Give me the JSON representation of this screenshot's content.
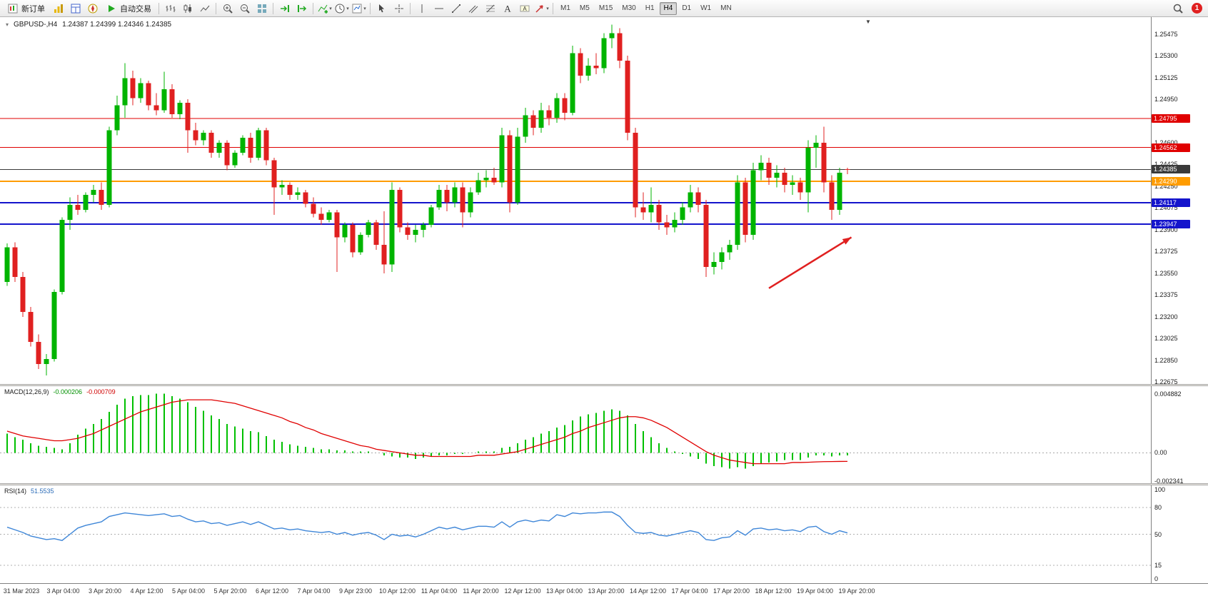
{
  "toolbar": {
    "items": [
      {
        "name": "new-order",
        "icon": "new-order-icon",
        "label": "新订单"
      },
      {
        "name": "market-watch",
        "icon": "market-watch-icon"
      },
      {
        "name": "data-window",
        "icon": "data-window-icon"
      },
      {
        "name": "navigator",
        "icon": "navigator-icon"
      },
      {
        "name": "autotrading",
        "icon": "autotrading-icon",
        "label": "自动交易"
      },
      {
        "sep": true
      },
      {
        "name": "bar-chart",
        "icon": "bar-chart-icon"
      },
      {
        "name": "candlestick-chart",
        "icon": "candlestick-icon"
      },
      {
        "name": "line-chart",
        "icon": "line-chart-icon"
      },
      {
        "sep": true
      },
      {
        "name": "zoom-in",
        "icon": "zoom-in-icon"
      },
      {
        "name": "zoom-out",
        "icon": "zoom-out-icon"
      },
      {
        "name": "tile-windows",
        "icon": "tile-windows-icon"
      },
      {
        "sep": true
      },
      {
        "name": "auto-scroll",
        "icon": "auto-scroll-icon"
      },
      {
        "name": "chart-shift",
        "icon": "chart-shift-icon"
      },
      {
        "sep": true
      },
      {
        "name": "indicators",
        "icon": "indicators-icon",
        "caret": true
      },
      {
        "name": "periods",
        "icon": "periods-icon",
        "caret": true
      },
      {
        "name": "templates",
        "icon": "templates-icon",
        "caret": true
      },
      {
        "sep": true
      },
      {
        "name": "cursor",
        "icon": "cursor-icon"
      },
      {
        "name": "crosshair",
        "icon": "crosshair-icon"
      },
      {
        "sep": true
      },
      {
        "name": "vertical-line",
        "icon": "vertical-line-icon"
      },
      {
        "name": "horizontal-line",
        "icon": "horizontal-line-icon"
      },
      {
        "name": "trendline",
        "icon": "trendline-icon"
      },
      {
        "name": "equidistant-channel",
        "icon": "channel-icon"
      },
      {
        "name": "fibonacci",
        "icon": "fibonacci-icon"
      },
      {
        "name": "text",
        "icon": "text-icon"
      },
      {
        "name": "text-label",
        "icon": "text-label-icon"
      },
      {
        "name": "arrow-objects",
        "icon": "arrow-objects-icon",
        "caret": true
      },
      {
        "sep": true
      }
    ],
    "timeframes": [
      "M1",
      "M5",
      "M15",
      "M30",
      "H1",
      "H4",
      "D1",
      "W1",
      "MN"
    ],
    "active_timeframe": "H4",
    "notification_count": "1"
  },
  "chart": {
    "symbol_period": "GBPUSD-,H4",
    "ohlc": "1.24387 1.24399 1.24346 1.24385"
  },
  "chart_data": {
    "type": "candlestick",
    "symbol": "GBPUSD-",
    "timeframe": "H4",
    "colors": {
      "up": "#00b400",
      "down": "#e02020",
      "macd_histogram": "#00c000",
      "macd_signal": "#e00000",
      "rsi_line": "#3e86d8"
    },
    "view_main": {
      "high": 1.2561,
      "low": 1.2266
    },
    "price_axis_labels": [
      "1.25475",
      "1.25300",
      "1.25125",
      "1.24950",
      "1.24775",
      "1.24600",
      "1.24425",
      "1.24250",
      "1.24075",
      "1.23900",
      "1.23725",
      "1.23550",
      "1.23375",
      "1.23200",
      "1.23025",
      "1.22850",
      "1.22675"
    ],
    "hlines": [
      {
        "price": 1.24795,
        "color": "#e00000",
        "label": "1.24795",
        "width": 1
      },
      {
        "price": 1.24562,
        "color": "#e00000",
        "label": "1.24562",
        "width": 1
      },
      {
        "price": 1.2429,
        "color": "#ff9c00",
        "label": "1.24290",
        "width": 2
      },
      {
        "price": 1.24117,
        "color": "#1414cc",
        "label": "1.24117",
        "width": 2
      },
      {
        "price": 1.23947,
        "color": "#1414cc",
        "label": "1.23947",
        "width": 2
      },
      {
        "price": 1.24385,
        "color": "#3a3a3a",
        "label": "1.24385",
        "width": 1,
        "current": true
      }
    ],
    "arrow": {
      "from_index": 97,
      "from_price": 1.2343,
      "to_index": 107.5,
      "to_price": 1.2384,
      "color": "#e02020"
    },
    "candles": [
      [
        1.2348,
        1.2379,
        1.2345,
        1.2376
      ],
      [
        1.2376,
        1.238,
        1.2348,
        1.2352
      ],
      [
        1.2352,
        1.2356,
        1.232,
        1.2324
      ],
      [
        1.2324,
        1.2328,
        1.2296,
        1.23
      ],
      [
        1.23,
        1.2306,
        1.2278,
        1.2282
      ],
      [
        1.2282,
        1.229,
        1.2273,
        1.2286
      ],
      [
        1.2286,
        1.2342,
        1.2284,
        1.234
      ],
      [
        1.234,
        1.24,
        1.2338,
        1.2398
      ],
      [
        1.2398,
        1.2416,
        1.239,
        1.241
      ],
      [
        1.241,
        1.2418,
        1.2402,
        1.2406
      ],
      [
        1.2406,
        1.242,
        1.2404,
        1.2418
      ],
      [
        1.2418,
        1.2426,
        1.2412,
        1.2422
      ],
      [
        1.2422,
        1.2428,
        1.2406,
        1.241
      ],
      [
        1.241,
        1.2473,
        1.2408,
        1.247
      ],
      [
        1.247,
        1.2498,
        1.2466,
        1.249
      ],
      [
        1.249,
        1.2524,
        1.248,
        1.2512
      ],
      [
        1.2512,
        1.2518,
        1.249,
        1.2496
      ],
      [
        1.2496,
        1.2512,
        1.2492,
        1.2508
      ],
      [
        1.2508,
        1.251,
        1.2486,
        1.249
      ],
      [
        1.249,
        1.25,
        1.2482,
        1.2486
      ],
      [
        1.2486,
        1.2517,
        1.2484,
        1.2503
      ],
      [
        1.2503,
        1.2507,
        1.248,
        1.2483
      ],
      [
        1.2483,
        1.2494,
        1.2479,
        1.2492
      ],
      [
        1.2492,
        1.2495,
        1.2452,
        1.247
      ],
      [
        1.247,
        1.2476,
        1.2458,
        1.2462
      ],
      [
        1.2462,
        1.247,
        1.2458,
        1.2468
      ],
      [
        1.2468,
        1.247,
        1.2448,
        1.2452
      ],
      [
        1.2452,
        1.2462,
        1.2448,
        1.246
      ],
      [
        1.246,
        1.2462,
        1.2438,
        1.2442
      ],
      [
        1.2442,
        1.2454,
        1.244,
        1.2452
      ],
      [
        1.2452,
        1.2466,
        1.245,
        1.2464
      ],
      [
        1.2464,
        1.2468,
        1.2444,
        1.2448
      ],
      [
        1.2448,
        1.2472,
        1.2446,
        1.247
      ],
      [
        1.247,
        1.2472,
        1.2442,
        1.2446
      ],
      [
        1.2446,
        1.2448,
        1.2402,
        1.2424
      ],
      [
        1.2424,
        1.243,
        1.2418,
        1.2426
      ],
      [
        1.2426,
        1.2428,
        1.2414,
        1.2418
      ],
      [
        1.2418,
        1.2424,
        1.2414,
        1.242
      ],
      [
        1.242,
        1.2422,
        1.2408,
        1.2411
      ],
      [
        1.2411,
        1.2416,
        1.24,
        1.2403
      ],
      [
        1.2403,
        1.2408,
        1.2394,
        1.2398
      ],
      [
        1.2398,
        1.2406,
        1.2396,
        1.2404
      ],
      [
        1.2404,
        1.2406,
        1.2356,
        1.2384
      ],
      [
        1.2384,
        1.2396,
        1.238,
        1.2394
      ],
      [
        1.2394,
        1.2396,
        1.2368,
        1.2372
      ],
      [
        1.2372,
        1.2388,
        1.237,
        1.2386
      ],
      [
        1.2386,
        1.2398,
        1.2384,
        1.2396
      ],
      [
        1.2396,
        1.2398,
        1.2374,
        1.2378
      ],
      [
        1.2378,
        1.2405,
        1.2355,
        1.2362
      ],
      [
        1.2362,
        1.2428,
        1.2356,
        1.2422
      ],
      [
        1.2422,
        1.2424,
        1.2388,
        1.2392
      ],
      [
        1.2392,
        1.2396,
        1.2382,
        1.2386
      ],
      [
        1.2386,
        1.2394,
        1.238,
        1.239
      ],
      [
        1.239,
        1.2396,
        1.2384,
        1.2394
      ],
      [
        1.2394,
        1.241,
        1.2392,
        1.2408
      ],
      [
        1.2408,
        1.2426,
        1.2406,
        1.2422
      ],
      [
        1.2422,
        1.2426,
        1.2405,
        1.2412
      ],
      [
        1.2412,
        1.2428,
        1.2408,
        1.2424
      ],
      [
        1.2424,
        1.2428,
        1.2392,
        1.2404
      ],
      [
        1.2404,
        1.2424,
        1.24,
        1.242
      ],
      [
        1.242,
        1.2436,
        1.2418,
        1.243
      ],
      [
        1.243,
        1.2438,
        1.2424,
        1.2432
      ],
      [
        1.2432,
        1.244,
        1.2426,
        1.2428
      ],
      [
        1.2428,
        1.2472,
        1.2424,
        1.2466
      ],
      [
        1.2466,
        1.247,
        1.2404,
        1.2412
      ],
      [
        1.2412,
        1.2472,
        1.241,
        1.2465
      ],
      [
        1.2465,
        1.2488,
        1.246,
        1.2482
      ],
      [
        1.2482,
        1.2486,
        1.2466,
        1.2472
      ],
      [
        1.2472,
        1.2492,
        1.2468,
        1.2486
      ],
      [
        1.2486,
        1.249,
        1.2474,
        1.248
      ],
      [
        1.248,
        1.25,
        1.2476,
        1.2496
      ],
      [
        1.2496,
        1.25,
        1.2478,
        1.2484
      ],
      [
        1.2484,
        1.2538,
        1.2482,
        1.2532
      ],
      [
        1.2532,
        1.2536,
        1.2508,
        1.2514
      ],
      [
        1.2514,
        1.2528,
        1.251,
        1.2522
      ],
      [
        1.2522,
        1.2532,
        1.2515,
        1.252
      ],
      [
        1.252,
        1.2548,
        1.2516,
        1.2544
      ],
      [
        1.2544,
        1.2555,
        1.2536,
        1.2548
      ],
      [
        1.2548,
        1.2552,
        1.252,
        1.2526
      ],
      [
        1.2526,
        1.253,
        1.2462,
        1.2468
      ],
      [
        1.2468,
        1.2472,
        1.24,
        1.2408
      ],
      [
        1.2408,
        1.242,
        1.2398,
        1.2404
      ],
      [
        1.2404,
        1.2424,
        1.2396,
        1.241
      ],
      [
        1.241,
        1.2414,
        1.239,
        1.2396
      ],
      [
        1.2396,
        1.2402,
        1.2386,
        1.2392
      ],
      [
        1.2392,
        1.2404,
        1.2388,
        1.2398
      ],
      [
        1.2398,
        1.2412,
        1.2394,
        1.2408
      ],
      [
        1.2408,
        1.2426,
        1.2404,
        1.242
      ],
      [
        1.242,
        1.2424,
        1.2404,
        1.241
      ],
      [
        1.241,
        1.2414,
        1.2352,
        1.236
      ],
      [
        1.236,
        1.2372,
        1.2354,
        1.2364
      ],
      [
        1.2364,
        1.2376,
        1.2358,
        1.2372
      ],
      [
        1.2372,
        1.2382,
        1.2366,
        1.2378
      ],
      [
        1.2378,
        1.2434,
        1.2374,
        1.2428
      ],
      [
        1.2428,
        1.2432,
        1.238,
        1.2386
      ],
      [
        1.2386,
        1.2444,
        1.2382,
        1.2438
      ],
      [
        1.2438,
        1.245,
        1.243,
        1.2444
      ],
      [
        1.2444,
        1.2448,
        1.2426,
        1.2432
      ],
      [
        1.2432,
        1.2442,
        1.2424,
        1.2436
      ],
      [
        1.2436,
        1.244,
        1.242,
        1.2426
      ],
      [
        1.2426,
        1.2434,
        1.2418,
        1.2428
      ],
      [
        1.2428,
        1.2432,
        1.2414,
        1.242
      ],
      [
        1.242,
        1.2462,
        1.2404,
        1.2456
      ],
      [
        1.2456,
        1.2466,
        1.244,
        1.246
      ],
      [
        1.246,
        1.2473,
        1.242,
        1.2428
      ],
      [
        1.2428,
        1.2434,
        1.2398,
        1.2406
      ],
      [
        1.2406,
        1.244,
        1.2402,
        1.2436
      ],
      [
        1.24387,
        1.24399,
        1.24346,
        1.24385
      ]
    ],
    "time_labels": [
      "31 Mar 2023",
      "3 Apr 04:00",
      "3 Apr 20:00",
      "4 Apr 12:00",
      "5 Apr 04:00",
      "5 Apr 20:00",
      "6 Apr 12:00",
      "7 Apr 04:00",
      "9 Apr 23:00",
      "10 Apr 12:00",
      "11 Apr 04:00",
      "11 Apr 20:00",
      "12 Apr 12:00",
      "13 Apr 04:00",
      "13 Apr 20:00",
      "14 Apr 12:00",
      "17 Apr 04:00",
      "17 Apr 20:00",
      "18 Apr 12:00",
      "19 Apr 04:00",
      "19 Apr 20:00"
    ],
    "macd": {
      "label": "MACD(12,26,9)",
      "value_main": "-0.000206",
      "value_signal": "-0.000709",
      "view": {
        "high": 0.00553,
        "low": -0.00252
      },
      "axis": [
        {
          "value": 0.004882,
          "label": "0.004882"
        },
        {
          "value": 0,
          "label": "0.00"
        },
        {
          "value": -0.002341,
          "label": "-0.002341"
        }
      ],
      "histogram": [
        0.0016,
        0.0013,
        0.0011,
        0.0008,
        0.0006,
        0.0005,
        0.0004,
        0.0003,
        0.0008,
        0.0015,
        0.002,
        0.0024,
        0.0028,
        0.0034,
        0.004,
        0.0045,
        0.0047,
        0.0048,
        0.0048,
        0.0049,
        0.0049,
        0.0047,
        0.0045,
        0.0042,
        0.0038,
        0.0035,
        0.0031,
        0.0028,
        0.0024,
        0.0022,
        0.002,
        0.0018,
        0.0017,
        0.0014,
        0.0011,
        0.0009,
        0.0007,
        0.0006,
        0.0005,
        0.0004,
        0.0003,
        0.0003,
        0.0002,
        0.0002,
        0.0001,
        0.0001,
        0.0001,
        0.0,
        -0.0002,
        -0.0003,
        -0.0004,
        -0.0004,
        -0.0005,
        -0.0004,
        -0.0003,
        -0.0002,
        -0.0002,
        -0.0001,
        -0.0001,
        0.0,
        0.0001,
        0.0001,
        0.0001,
        0.0004,
        0.0005,
        0.0008,
        0.0011,
        0.0013,
        0.0016,
        0.0018,
        0.0021,
        0.0023,
        0.0027,
        0.003,
        0.0032,
        0.0033,
        0.0035,
        0.0036,
        0.0035,
        0.0031,
        0.0024,
        0.0018,
        0.0013,
        0.0008,
        0.0004,
        0.0001,
        -0.0001,
        -0.0003,
        -0.0005,
        -0.0009,
        -0.0011,
        -0.0012,
        -0.0013,
        -0.0012,
        -0.0013,
        -0.0011,
        -0.0009,
        -0.0008,
        -0.0007,
        -0.0006,
        -0.0006,
        -0.0006,
        -0.0004,
        -0.0002,
        -0.0002,
        -0.0003,
        -0.0002,
        -0.000206
      ],
      "signal": [
        0.0018,
        0.0016,
        0.0014,
        0.0013,
        0.0012,
        0.0011,
        0.001,
        0.001,
        0.0011,
        0.0012,
        0.0014,
        0.0016,
        0.0019,
        0.0022,
        0.0025,
        0.0028,
        0.0031,
        0.0034,
        0.0036,
        0.0038,
        0.004,
        0.0042,
        0.0043,
        0.0044,
        0.0044,
        0.0044,
        0.0044,
        0.0043,
        0.0042,
        0.0041,
        0.0039,
        0.0037,
        0.0035,
        0.0033,
        0.0031,
        0.0029,
        0.0026,
        0.0024,
        0.0021,
        0.0019,
        0.0016,
        0.0014,
        0.0012,
        0.001,
        0.0008,
        0.0006,
        0.0005,
        0.0003,
        0.0002,
        0.0001,
        0.0,
        -0.0001,
        -0.0002,
        -0.0002,
        -0.0003,
        -0.0003,
        -0.0003,
        -0.0003,
        -0.0003,
        -0.0003,
        -0.0002,
        -0.0002,
        -0.0002,
        -0.0001,
        0.0,
        0.0001,
        0.0003,
        0.0005,
        0.0007,
        0.0009,
        0.0011,
        0.0013,
        0.0016,
        0.0018,
        0.0021,
        0.0023,
        0.0025,
        0.0027,
        0.0029,
        0.003,
        0.003,
        0.0029,
        0.0027,
        0.0024,
        0.0021,
        0.0017,
        0.0013,
        0.0009,
        0.0005,
        0.0001,
        -0.0002,
        -0.0004,
        -0.0006,
        -0.0007,
        -0.0008,
        -0.0009,
        -0.0009,
        -0.0009,
        -0.0009,
        -0.0009,
        -0.0008,
        -0.0008,
        -0.00078,
        -0.00075,
        -0.00073,
        -0.00072,
        -0.00071,
        -0.000709
      ]
    },
    "rsi": {
      "label": "RSI(14)",
      "value": "51.5535",
      "view": {
        "high": 105,
        "low": -5
      },
      "levels": [
        80,
        50,
        15
      ],
      "axis": [
        {
          "value": 100,
          "label": "100"
        },
        {
          "value": 80,
          "label": "80"
        },
        {
          "value": 50,
          "label": "50"
        },
        {
          "value": 15,
          "label": "15"
        },
        {
          "value": 0,
          "label": "0"
        }
      ],
      "values": [
        58,
        55,
        52,
        48,
        46,
        44,
        45,
        43,
        50,
        57,
        60,
        62,
        64,
        70,
        72,
        74,
        73,
        72,
        71,
        72,
        73,
        70,
        71,
        67,
        64,
        65,
        62,
        63,
        60,
        62,
        64,
        61,
        64,
        60,
        56,
        57,
        55,
        56,
        54,
        53,
        52,
        53,
        50,
        52,
        49,
        51,
        52,
        49,
        44,
        50,
        48,
        49,
        47,
        50,
        54,
        58,
        56,
        58,
        55,
        57,
        59,
        59,
        58,
        64,
        58,
        64,
        66,
        64,
        66,
        65,
        72,
        70,
        74,
        73,
        74,
        74,
        75,
        75,
        70,
        60,
        52,
        51,
        52,
        49,
        48,
        50,
        52,
        54,
        52,
        44,
        43,
        46,
        47,
        54,
        49,
        56,
        57,
        55,
        56,
        54,
        55,
        53,
        58,
        59,
        53,
        50,
        54,
        51.55
      ]
    }
  }
}
